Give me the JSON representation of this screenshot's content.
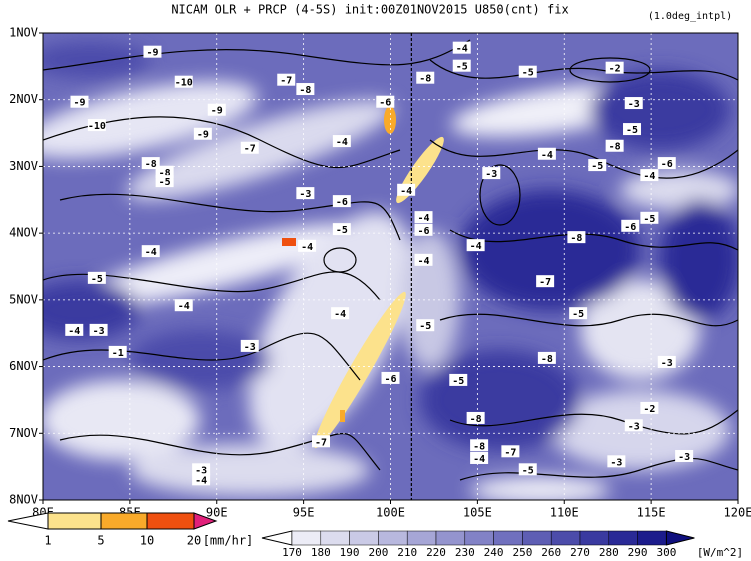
{
  "chart_data": {
    "type": "hovmoller",
    "title": "NICAM  OLR + PRCP (4-5S) init:00Z01NOV2015 U850(cnt) fix",
    "subtitle": "(1.0deg_intpl)",
    "xlim": [
      80,
      120
    ],
    "xticks": [
      {
        "value": 80,
        "label": "80E"
      },
      {
        "value": 85,
        "label": "85E"
      },
      {
        "value": 90,
        "label": "90E"
      },
      {
        "value": 95,
        "label": "95E"
      },
      {
        "value": 100,
        "label": "100E"
      },
      {
        "value": 105,
        "label": "105E"
      },
      {
        "value": 110,
        "label": "110E"
      },
      {
        "value": 115,
        "label": "115E"
      },
      {
        "value": 120,
        "label": "120E"
      }
    ],
    "ylim": [
      1,
      8
    ],
    "yticks": [
      {
        "value": 1,
        "label": "1NOV"
      },
      {
        "value": 2,
        "label": "2NOV"
      },
      {
        "value": 3,
        "label": "3NOV"
      },
      {
        "value": 4,
        "label": "4NOV"
      },
      {
        "value": 5,
        "label": "5NOV"
      },
      {
        "value": 6,
        "label": "6NOV"
      },
      {
        "value": 7,
        "label": "7NOV"
      },
      {
        "value": 8,
        "label": "8NOV"
      }
    ],
    "grid": true,
    "vline": 101.2,
    "contour_labels": {
      "x": [
        86.3,
        88.1,
        82.1,
        83.1,
        90.0,
        89.2,
        94.0,
        95.1,
        91.9,
        86.2,
        87.0,
        87.0,
        97.2,
        95.1,
        97.2,
        97.2,
        95.2,
        86.2,
        83.1,
        88.1,
        81.8,
        83.2,
        84.3,
        91.9,
        97.1,
        100.0,
        102.0,
        99.7,
        102.0,
        104.1,
        104.1,
        107.9,
        112.9,
        114.0,
        113.9,
        105.8,
        109.0,
        112.9,
        111.9,
        115.9,
        114.9,
        100.9,
        101.9,
        101.9,
        101.9,
        104.9,
        114.9,
        113.8,
        110.7,
        108.9,
        110.8,
        109.0,
        115.9,
        103.9,
        104.9,
        105.1,
        105.1,
        106.9,
        107.9,
        114.9,
        114.0,
        113.0,
        116.9,
        96.0,
        89.1,
        89.1
      ],
      "y": [
        1.28,
        1.73,
        2.03,
        2.38,
        2.15,
        2.51,
        1.7,
        1.84,
        2.72,
        2.95,
        3.08,
        3.22,
        2.62,
        3.4,
        3.52,
        3.94,
        4.19,
        4.27,
        4.67,
        5.08,
        5.45,
        5.45,
        5.78,
        5.69,
        5.2,
        6.17,
        5.38,
        2.03,
        1.67,
        1.22,
        1.49,
        1.58,
        1.52,
        2.05,
        2.44,
        3.1,
        2.81,
        2.69,
        2.98,
        2.95,
        3.13,
        3.35,
        3.76,
        3.95,
        4.4,
        4.18,
        3.77,
        3.89,
        4.06,
        4.72,
        5.2,
        5.87,
        5.93,
        6.2,
        6.77,
        7.18,
        7.37,
        7.27,
        7.54,
        6.62,
        6.88,
        7.42,
        7.34,
        7.12,
        7.54,
        7.69
      ],
      "values": [
        -9,
        -10,
        -9,
        -10,
        -9,
        -9,
        -7,
        -8,
        -7,
        -8,
        -8,
        -5,
        -4,
        -3,
        -6,
        -5,
        -4,
        -4,
        -5,
        -4,
        -4,
        -3,
        -1,
        -3,
        -4,
        -6,
        -5,
        -6,
        -8,
        -4,
        -5,
        -5,
        -2,
        -3,
        -5,
        -3,
        -4,
        -8,
        -5,
        -6,
        -4,
        -4,
        -4,
        -6,
        -4,
        -4,
        -5,
        -6,
        -8,
        -7,
        -5,
        -8,
        -3,
        -5,
        -8,
        -8,
        -4,
        -7,
        -5,
        -2,
        -3,
        -3,
        -3,
        -7,
        -3,
        -4
      ]
    },
    "precip_colorbar": {
      "levels": [
        1,
        5,
        10,
        20
      ],
      "colors": [
        "#ffffff",
        "#fce28c",
        "#f9aa2a",
        "#ef5010",
        "#e0207a"
      ],
      "unit": "[mm/hr]"
    },
    "olr_colorbar": {
      "levels": [
        170,
        180,
        190,
        200,
        210,
        220,
        230,
        240,
        250,
        260,
        270,
        280,
        290,
        300
      ],
      "colors": [
        "#ffffff",
        "#ececf6",
        "#dcdcee",
        "#cacae6",
        "#b8b8de",
        "#a6a6d6",
        "#9494ce",
        "#8282c6",
        "#7070be",
        "#5e5eb4",
        "#4c4caa",
        "#3a3aa0",
        "#2a2a96",
        "#1c1c8c",
        "#10107e"
      ],
      "unit": "[W/m^2]"
    }
  }
}
